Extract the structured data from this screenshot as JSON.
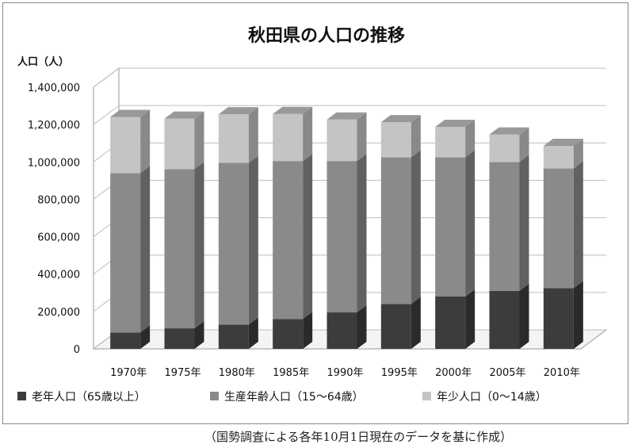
{
  "chart_data": {
    "type": "bar",
    "stacked": true,
    "three_d": true,
    "title": "秋田県の人口の推移",
    "ylabel": "人口（人）",
    "xlabel": "",
    "ylim": [
      0,
      1400000
    ],
    "yticks": [
      {
        "value": 0,
        "label": "0"
      },
      {
        "value": 200000,
        "label": "200,000"
      },
      {
        "value": 400000,
        "label": "400,000"
      },
      {
        "value": 600000,
        "label": "600,000"
      },
      {
        "value": 800000,
        "label": "800,000"
      },
      {
        "value": 1000000,
        "label": "1,000,000"
      },
      {
        "value": 1200000,
        "label": "1,200,000"
      },
      {
        "value": 1400000,
        "label": "1,400,000"
      }
    ],
    "grid": true,
    "legend_position": "bottom",
    "categories": [
      "1970年",
      "1975年",
      "1980年",
      "1985年",
      "1990年",
      "1995年",
      "2000年",
      "2005年",
      "2010年"
    ],
    "series": [
      {
        "name": "老年人口（65歳以上）",
        "color": "#3c3c3c",
        "values": [
          88000,
          110000,
          130000,
          160000,
          195000,
          240000,
          280000,
          310000,
          325000
        ]
      },
      {
        "name": "生産年齢人口（15～64歳）",
        "color": "#8a8a8a",
        "values": [
          852000,
          852000,
          865000,
          845000,
          810000,
          785000,
          745000,
          690000,
          640000
        ]
      },
      {
        "name": "年少人口（0～14歳）",
        "color": "#c4c4c4",
        "values": [
          301000,
          270000,
          260000,
          252000,
          222000,
          188000,
          163000,
          147000,
          121000
        ]
      }
    ]
  },
  "source_note": "（国勢調査による各年10月1日現在のデータを基に作成）"
}
